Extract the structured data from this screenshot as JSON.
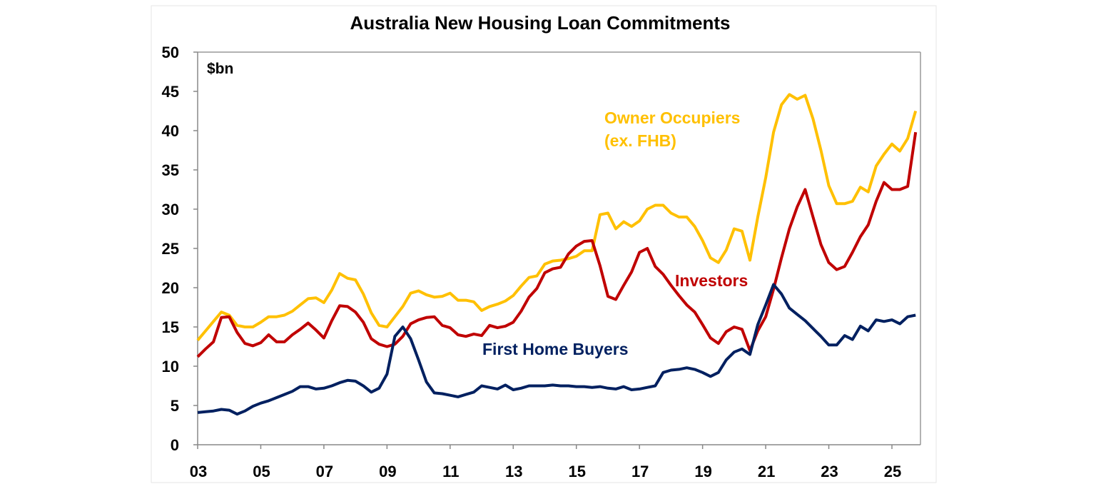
{
  "chart_data": {
    "type": "line",
    "title": "Australia New Housing Loan Commitments",
    "ylabel": "$bn",
    "xlabel": "",
    "ylim": [
      0,
      50
    ],
    "yticks": [
      0,
      5,
      10,
      15,
      20,
      25,
      30,
      35,
      40,
      45,
      50
    ],
    "xlim": [
      2003,
      2025.9
    ],
    "xticks": [
      2003,
      2005,
      2007,
      2009,
      2011,
      2013,
      2015,
      2017,
      2019,
      2021,
      2023,
      2025
    ],
    "xtick_labels": [
      "03",
      "05",
      "07",
      "09",
      "11",
      "13",
      "15",
      "17",
      "19",
      "21",
      "23",
      "25"
    ],
    "grid": false,
    "x_start": 2003,
    "x_step": 0.25,
    "series": [
      {
        "name": "Owner Occupiers (ex. FHB)",
        "label_lines": [
          "Owner Occupiers",
          "(ex. FHB)"
        ],
        "color": "#FFC000",
        "values": [
          13.3,
          14.5,
          15.7,
          16.9,
          16.5,
          15.2,
          15.0,
          15.0,
          15.6,
          16.3,
          16.3,
          16.5,
          17.0,
          17.8,
          18.6,
          18.7,
          18.1,
          19.7,
          21.8,
          21.2,
          21.0,
          19.2,
          16.8,
          15.2,
          15.0,
          16.3,
          17.6,
          19.3,
          19.6,
          19.1,
          18.8,
          18.9,
          19.3,
          18.4,
          18.4,
          18.2,
          17.1,
          17.6,
          17.9,
          18.3,
          19.0,
          20.2,
          21.3,
          21.5,
          23.0,
          23.4,
          23.5,
          23.7,
          24.0,
          24.7,
          24.7,
          29.3,
          29.5,
          27.5,
          28.4,
          27.8,
          28.5,
          30.0,
          30.5,
          30.5,
          29.5,
          29.0,
          29.0,
          27.8,
          26.0,
          23.8,
          23.2,
          24.8,
          27.5,
          27.2,
          23.5,
          29.0,
          34.0,
          39.8,
          43.3,
          44.6,
          44.0,
          44.5,
          41.5,
          37.5,
          33.0,
          30.7,
          30.7,
          31.0,
          32.8,
          32.2,
          35.5,
          37.0,
          38.3,
          37.4,
          39.0,
          42.5
        ]
      },
      {
        "name": "Investors",
        "label_lines": [
          "Investors"
        ],
        "color": "#C00000",
        "values": [
          11.2,
          12.2,
          13.1,
          16.2,
          16.3,
          14.3,
          12.9,
          12.6,
          13.0,
          14.0,
          13.1,
          13.1,
          14.0,
          14.7,
          15.5,
          14.6,
          13.6,
          15.8,
          17.7,
          17.6,
          16.9,
          15.6,
          13.5,
          12.8,
          12.5,
          12.8,
          13.8,
          15.4,
          15.9,
          16.2,
          16.3,
          15.2,
          14.9,
          14.0,
          13.8,
          14.1,
          13.9,
          15.2,
          14.9,
          15.1,
          15.6,
          17.0,
          18.8,
          19.9,
          21.9,
          22.4,
          22.6,
          24.3,
          25.3,
          25.9,
          26.0,
          22.8,
          18.9,
          18.5,
          20.3,
          22.0,
          24.5,
          25.0,
          22.7,
          21.7,
          20.3,
          19.0,
          17.8,
          16.9,
          15.3,
          13.6,
          12.9,
          14.4,
          15.0,
          14.7,
          12.0,
          14.5,
          16.3,
          19.8,
          23.8,
          27.5,
          30.3,
          32.5,
          29.0,
          25.5,
          23.2,
          22.3,
          22.7,
          24.5,
          26.5,
          28.0,
          31.0,
          33.4,
          32.5,
          32.5,
          32.9,
          39.8
        ]
      },
      {
        "name": "First Home Buyers",
        "label_lines": [
          "First Home Buyers"
        ],
        "color": "#002060",
        "values": [
          4.1,
          4.2,
          4.3,
          4.5,
          4.4,
          3.9,
          4.3,
          4.9,
          5.3,
          5.6,
          6.0,
          6.4,
          6.8,
          7.4,
          7.4,
          7.1,
          7.2,
          7.5,
          7.9,
          8.2,
          8.1,
          7.5,
          6.7,
          7.2,
          9.0,
          13.8,
          15.0,
          13.5,
          10.8,
          8.0,
          6.6,
          6.5,
          6.3,
          6.1,
          6.4,
          6.7,
          7.5,
          7.3,
          7.1,
          7.6,
          7.0,
          7.2,
          7.5,
          7.5,
          7.5,
          7.6,
          7.5,
          7.5,
          7.4,
          7.4,
          7.3,
          7.4,
          7.2,
          7.1,
          7.4,
          7.0,
          7.1,
          7.3,
          7.5,
          9.2,
          9.5,
          9.6,
          9.8,
          9.6,
          9.2,
          8.7,
          9.2,
          10.8,
          11.8,
          12.2,
          11.5,
          15.3,
          17.8,
          20.4,
          19.2,
          17.4,
          16.6,
          15.8,
          14.8,
          13.8,
          12.7,
          12.7,
          13.9,
          13.4,
          15.1,
          14.5,
          15.9,
          15.7,
          15.9,
          15.4,
          16.3,
          16.5
        ]
      }
    ]
  }
}
